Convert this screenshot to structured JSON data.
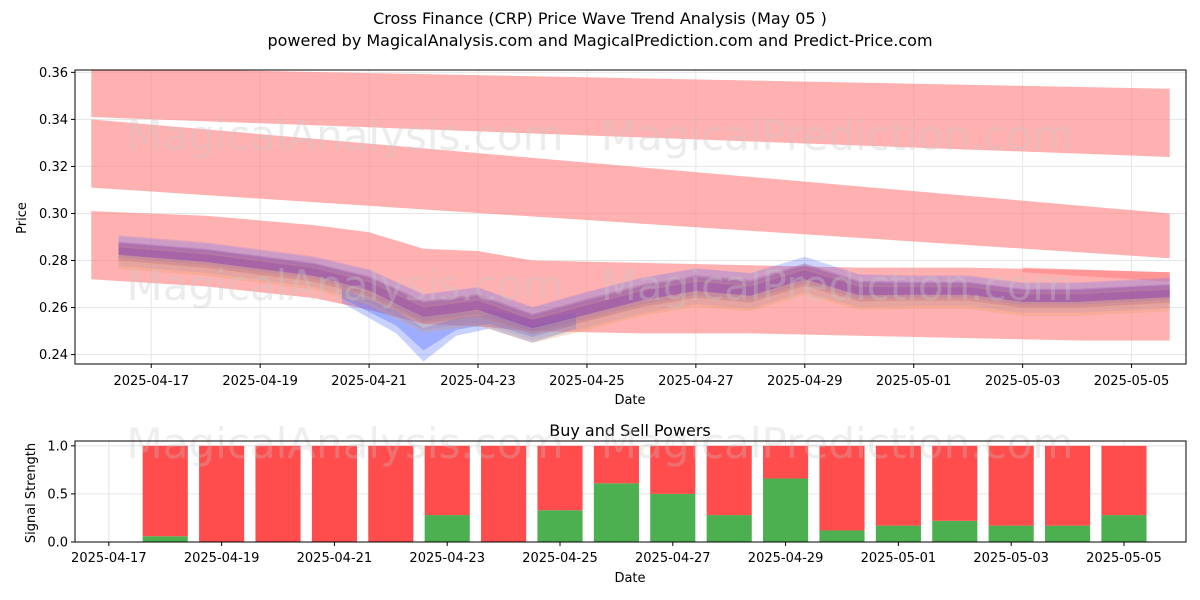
{
  "header": {
    "title": "Cross Finance (CRP) Price Wave Trend Analysis (May 05 )",
    "subtitle": "powered by MagicalAnalysis.com and MagicalPrediction.com and Predict-Price.com"
  },
  "watermarks": [
    "MagicalAnalysis.com",
    "MagicalPrediction.com"
  ],
  "colors": {
    "band": "#ff8080",
    "trend_blue": "#4d6bff",
    "trend_purple": "#8a3fb0",
    "trend_orange": "#e6a060",
    "buy": "#4caf50",
    "sell": "#ff4c4c"
  },
  "chart_data": [
    {
      "type": "area",
      "name": "price-wave",
      "xlabel": "Date",
      "ylabel": "Price",
      "ylim": [
        0.236,
        0.361
      ],
      "xlim": [
        "2025-04-15.6",
        "2025-05-06.0"
      ],
      "yticks": [
        0.24,
        0.26,
        0.28,
        0.3,
        0.32,
        0.34,
        0.36
      ],
      "xticks": [
        "2025-04-17",
        "2025-04-19",
        "2025-04-21",
        "2025-04-23",
        "2025-04-25",
        "2025-04-27",
        "2025-04-29",
        "2025-05-01",
        "2025-05-03",
        "2025-05-05"
      ],
      "grid": true,
      "bands": [
        {
          "x": [
            "2025-04-15.9",
            "2025-05-05.7"
          ],
          "upper": [
            0.362,
            0.353
          ],
          "lower": [
            0.341,
            0.324
          ]
        },
        {
          "x": [
            "2025-04-15.9",
            "2025-05-05.7"
          ],
          "upper": [
            0.34,
            0.3
          ],
          "lower": [
            0.311,
            0.281
          ]
        },
        {
          "x": [
            "2025-04-15.9",
            "2025-04-18",
            "2025-04-20",
            "2025-04-21",
            "2025-04-22",
            "2025-04-23",
            "2025-04-24",
            "2025-04-26",
            "2025-04-28",
            "2025-04-30",
            "2025-05-02",
            "2025-05-04",
            "2025-05-05.7"
          ],
          "upper": [
            0.301,
            0.299,
            0.295,
            0.292,
            0.285,
            0.284,
            0.28,
            0.279,
            0.278,
            0.277,
            0.277,
            0.276,
            0.275
          ],
          "lower": [
            0.272,
            0.269,
            0.264,
            0.259,
            0.253,
            0.252,
            0.25,
            0.249,
            0.249,
            0.248,
            0.247,
            0.246,
            0.246
          ]
        },
        {
          "x": [
            "2025-05-03",
            "2025-05-05.7"
          ],
          "upper": [
            0.277,
            0.275
          ],
          "lower": [
            0.275,
            0.271
          ]
        }
      ],
      "trend": {
        "x": [
          "2025-04-16.4",
          "2025-04-18",
          "2025-04-20",
          "2025-04-21",
          "2025-04-22",
          "2025-04-23",
          "2025-04-24",
          "2025-04-25",
          "2025-04-26",
          "2025-04-27",
          "2025-04-28",
          "2025-04-29",
          "2025-04-30",
          "2025-05-01",
          "2025-05-02",
          "2025-05-03",
          "2025-05-04",
          "2025-05-05.7"
        ],
        "mid": [
          0.284,
          0.281,
          0.275,
          0.269,
          0.258,
          0.261,
          0.253,
          0.259,
          0.265,
          0.269,
          0.267,
          0.274,
          0.267,
          0.267,
          0.267,
          0.264,
          0.264,
          0.266
        ],
        "spread": [
          0.01,
          0.01,
          0.01,
          0.011,
          0.012,
          0.012,
          0.011,
          0.012,
          0.012,
          0.012,
          0.012,
          0.012,
          0.011,
          0.01,
          0.01,
          0.01,
          0.01,
          0.01
        ]
      },
      "blue_dip": {
        "x": [
          "2025-04-20.5",
          "2025-04-21.5",
          "2025-04-22",
          "2025-04-22.6",
          "2025-04-23.2",
          "2025-04-24",
          "2025-04-24.8"
        ],
        "upper": [
          0.27,
          0.262,
          0.256,
          0.258,
          0.259,
          0.255,
          0.258
        ],
        "lower": [
          0.262,
          0.249,
          0.237,
          0.248,
          0.251,
          0.245,
          0.251
        ]
      }
    },
    {
      "type": "bar",
      "name": "buy-sell-powers",
      "title": "Buy and Sell Powers",
      "xlabel": "Date",
      "ylabel": "Signal Strength",
      "ylim": [
        0,
        1.05
      ],
      "yticks": [
        0.0,
        0.5,
        1.0
      ],
      "xticks": [
        "2025-04-17",
        "2025-04-19",
        "2025-04-21",
        "2025-04-23",
        "2025-04-25",
        "2025-04-27",
        "2025-04-29",
        "2025-05-01",
        "2025-05-03",
        "2025-05-05"
      ],
      "grid": true,
      "categories": [
        "2025-04-18",
        "2025-04-19",
        "2025-04-20",
        "2025-04-21",
        "2025-04-22",
        "2025-04-23",
        "2025-04-24",
        "2025-04-25",
        "2025-04-26",
        "2025-04-27",
        "2025-04-28",
        "2025-04-29",
        "2025-04-30",
        "2025-05-01",
        "2025-05-02",
        "2025-05-03",
        "2025-05-04",
        "2025-05-05"
      ],
      "series": [
        {
          "values": [
            0.06,
            0.0,
            0.0,
            0.0,
            0.0,
            0.28,
            0.0,
            0.33,
            0.61,
            0.5,
            0.28,
            0.66,
            0.12,
            0.17,
            0.22,
            0.17,
            0.17,
            0.28
          ]
        },
        {
          "values": [
            0.94,
            1.0,
            1.0,
            1.0,
            1.0,
            0.72,
            1.0,
            0.67,
            0.39,
            0.5,
            0.72,
            0.34,
            0.88,
            0.83,
            0.78,
            0.83,
            0.83,
            0.72
          ]
        }
      ]
    }
  ]
}
